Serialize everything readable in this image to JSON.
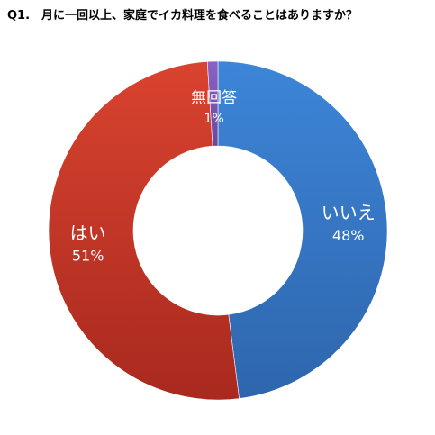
{
  "chart_data": {
    "type": "pie",
    "style": "donut",
    "title": "Q1.　月に一回以上、家庭でイカ料理を食べることはありますか？",
    "categories": [
      "いいえ",
      "はい",
      "無回答"
    ],
    "values": [
      48,
      51,
      1
    ],
    "value_labels": [
      "48%",
      "51%",
      "1%"
    ],
    "colors": [
      "#3a7fcf",
      "#cf3b2e",
      "#7a55b5"
    ],
    "legend": "none",
    "start": "top",
    "direction": "clockwise"
  }
}
